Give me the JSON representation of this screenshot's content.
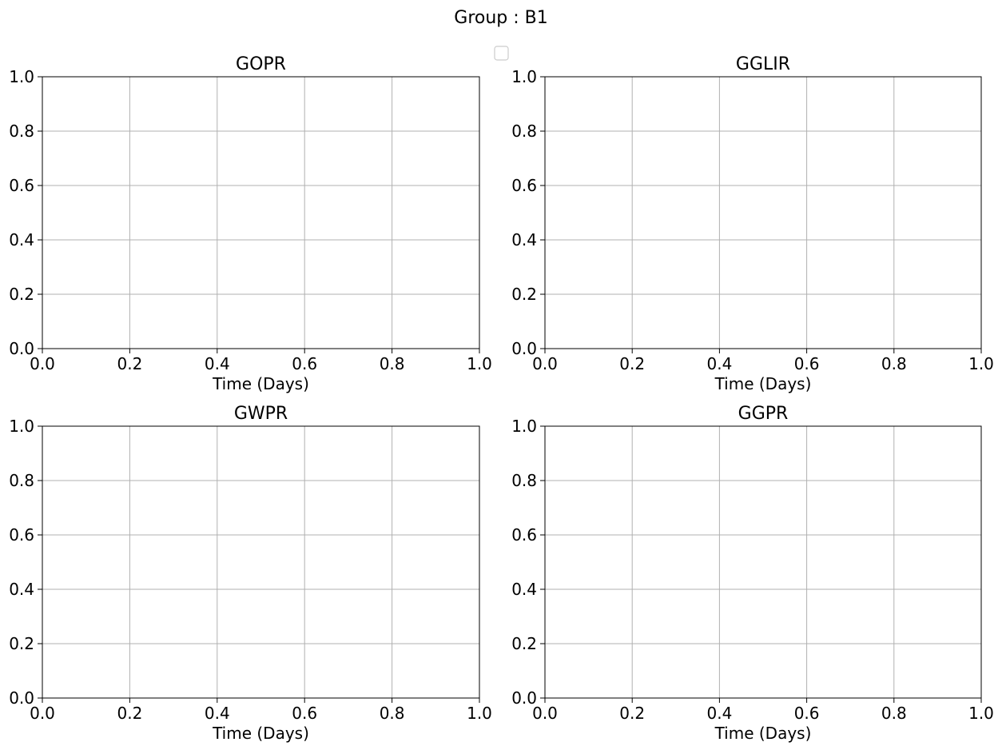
{
  "figure": {
    "suptitle": "Group : B1"
  },
  "chart_data": [
    {
      "type": "line",
      "title": "GOPR",
      "xlabel": "Time (Days)",
      "ylabel": "",
      "xlim": [
        0,
        1
      ],
      "ylim": [
        0,
        1
      ],
      "xticks": [
        "0.0",
        "0.2",
        "0.4",
        "0.6",
        "0.8",
        "1.0"
      ],
      "yticks": [
        "0.0",
        "0.2",
        "0.4",
        "0.6",
        "0.8",
        "1.0"
      ],
      "grid": true,
      "series": []
    },
    {
      "type": "line",
      "title": "GGLIR",
      "xlabel": "Time (Days)",
      "ylabel": "",
      "xlim": [
        0,
        1
      ],
      "ylim": [
        0,
        1
      ],
      "xticks": [
        "0.0",
        "0.2",
        "0.4",
        "0.6",
        "0.8",
        "1.0"
      ],
      "yticks": [
        "0.0",
        "0.2",
        "0.4",
        "0.6",
        "0.8",
        "1.0"
      ],
      "grid": true,
      "series": []
    },
    {
      "type": "line",
      "title": "GWPR",
      "xlabel": "Time (Days)",
      "ylabel": "",
      "xlim": [
        0,
        1
      ],
      "ylim": [
        0,
        1
      ],
      "xticks": [
        "0.0",
        "0.2",
        "0.4",
        "0.6",
        "0.8",
        "1.0"
      ],
      "yticks": [
        "0.0",
        "0.2",
        "0.4",
        "0.6",
        "0.8",
        "1.0"
      ],
      "grid": true,
      "series": []
    },
    {
      "type": "line",
      "title": "GGPR",
      "xlabel": "Time (Days)",
      "ylabel": "",
      "xlim": [
        0,
        1
      ],
      "ylim": [
        0,
        1
      ],
      "xticks": [
        "0.0",
        "0.2",
        "0.4",
        "0.6",
        "0.8",
        "1.0"
      ],
      "yticks": [
        "0.0",
        "0.2",
        "0.4",
        "0.6",
        "0.8",
        "1.0"
      ],
      "grid": true,
      "series": []
    }
  ],
  "legend": {
    "placement": "upper-center",
    "entries": []
  }
}
